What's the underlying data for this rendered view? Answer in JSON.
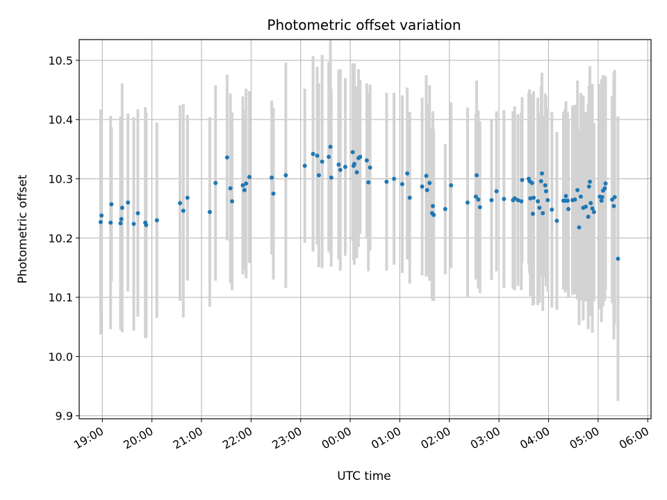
{
  "chart_data": {
    "type": "scatter",
    "title": "Photometric offset variation",
    "xlabel": "UTC time",
    "ylabel": "Photometric offset",
    "x_axis_type": "time",
    "xlim": [
      "18:32",
      "06:04"
    ],
    "ylim": [
      9.895,
      10.535
    ],
    "x_ticks": [
      "19:00",
      "20:00",
      "21:00",
      "22:00",
      "23:00",
      "00:00",
      "01:00",
      "02:00",
      "03:00",
      "04:00",
      "05:00",
      "06:00"
    ],
    "y_ticks": [
      "9.9",
      "10.0",
      "10.1",
      "10.2",
      "10.3",
      "10.4",
      "10.5"
    ],
    "grid": true,
    "x_tick_rotation_deg": 30,
    "colors": {
      "point": "#1f77b4",
      "error_bar": "#d3d3d3",
      "grid": "#b0b0b0"
    },
    "series": [
      {
        "points": [
          {
            "t": "18:58",
            "y": 10.227,
            "err": 0.19
          },
          {
            "t": "18:59",
            "y": 10.238,
            "err": 0.17
          },
          {
            "t": "19:10",
            "y": 10.226,
            "err": 0.18
          },
          {
            "t": "19:11",
            "y": 10.257,
            "err": 0.13
          },
          {
            "t": "19:22",
            "y": 10.225,
            "err": 0.18
          },
          {
            "t": "19:23",
            "y": 10.232,
            "err": 0.17
          },
          {
            "t": "19:24",
            "y": 10.251,
            "err": 0.21
          },
          {
            "t": "19:31",
            "y": 10.26,
            "err": 0.15
          },
          {
            "t": "19:38",
            "y": 10.224,
            "err": 0.18
          },
          {
            "t": "19:43",
            "y": 10.242,
            "err": 0.175
          },
          {
            "t": "19:52",
            "y": 10.226,
            "err": 0.195
          },
          {
            "t": "19:53",
            "y": 10.222,
            "err": 0.19
          },
          {
            "t": "20:06",
            "y": 10.23,
            "err": 0.165
          },
          {
            "t": "20:34",
            "y": 10.259,
            "err": 0.165
          },
          {
            "t": "20:38",
            "y": 10.246,
            "err": 0.18
          },
          {
            "t": "20:43",
            "y": 10.268,
            "err": 0.14
          },
          {
            "t": "21:10",
            "y": 10.244,
            "err": 0.16
          },
          {
            "t": "21:17",
            "y": 10.293,
            "err": 0.165
          },
          {
            "t": "21:31",
            "y": 10.336,
            "err": 0.14
          },
          {
            "t": "21:35",
            "y": 10.284,
            "err": 0.16
          },
          {
            "t": "21:37",
            "y": 10.262,
            "err": 0.15
          },
          {
            "t": "21:50",
            "y": 10.289,
            "err": 0.15
          },
          {
            "t": "21:52",
            "y": 10.281,
            "err": 0.135
          },
          {
            "t": "21:54",
            "y": 10.292,
            "err": 0.16
          },
          {
            "t": "21:58",
            "y": 10.303,
            "err": 0.145
          },
          {
            "t": "22:25",
            "y": 10.302,
            "err": 0.13
          },
          {
            "t": "22:27",
            "y": 10.275,
            "err": 0.145
          },
          {
            "t": "22:42",
            "y": 10.306,
            "err": 0.19
          },
          {
            "t": "23:05",
            "y": 10.322,
            "err": 0.13
          },
          {
            "t": "23:15",
            "y": 10.342,
            "err": 0.165
          },
          {
            "t": "23:20",
            "y": 10.339,
            "err": 0.15
          },
          {
            "t": "23:22",
            "y": 10.306,
            "err": 0.155
          },
          {
            "t": "23:26",
            "y": 10.329,
            "err": 0.18
          },
          {
            "t": "23:34",
            "y": 10.337,
            "err": 0.16
          },
          {
            "t": "23:36",
            "y": 10.354,
            "err": 0.18
          },
          {
            "t": "23:37",
            "y": 10.302,
            "err": 0.15
          },
          {
            "t": "23:46",
            "y": 10.324,
            "err": 0.16
          },
          {
            "t": "23:48",
            "y": 10.315,
            "err": 0.17
          },
          {
            "t": "23:54",
            "y": 10.32,
            "err": 0.15
          },
          {
            "t": "00:03",
            "y": 10.345,
            "err": 0.15
          },
          {
            "t": "00:04",
            "y": 10.322,
            "err": 0.16
          },
          {
            "t": "00:05",
            "y": 10.325,
            "err": 0.17
          },
          {
            "t": "00:08",
            "y": 10.311,
            "err": 0.145
          },
          {
            "t": "00:10",
            "y": 10.335,
            "err": 0.15
          },
          {
            "t": "00:12",
            "y": 10.337,
            "err": 0.13
          },
          {
            "t": "00:20",
            "y": 10.331,
            "err": 0.13
          },
          {
            "t": "00:22",
            "y": 10.294,
            "err": 0.15
          },
          {
            "t": "00:24",
            "y": 10.319,
            "err": 0.14
          },
          {
            "t": "00:44",
            "y": 10.295,
            "err": 0.15
          },
          {
            "t": "00:53",
            "y": 10.3,
            "err": 0.145
          },
          {
            "t": "01:03",
            "y": 10.291,
            "err": 0.15
          },
          {
            "t": "01:09",
            "y": 10.309,
            "err": 0.145
          },
          {
            "t": "01:12",
            "y": 10.268,
            "err": 0.145
          },
          {
            "t": "01:27",
            "y": 10.287,
            "err": 0.15
          },
          {
            "t": "01:32",
            "y": 10.305,
            "err": 0.17
          },
          {
            "t": "01:33",
            "y": 10.281,
            "err": 0.145
          },
          {
            "t": "01:36",
            "y": 10.293,
            "err": 0.165
          },
          {
            "t": "01:39",
            "y": 10.242,
            "err": 0.145
          },
          {
            "t": "01:40",
            "y": 10.254,
            "err": 0.16
          },
          {
            "t": "01:41",
            "y": 10.239,
            "err": 0.145
          },
          {
            "t": "01:55",
            "y": 10.249,
            "err": 0.11
          },
          {
            "t": "02:02",
            "y": 10.289,
            "err": 0.14
          },
          {
            "t": "02:22",
            "y": 10.26,
            "err": 0.16
          },
          {
            "t": "02:32",
            "y": 10.27,
            "err": 0.14
          },
          {
            "t": "02:33",
            "y": 10.306,
            "err": 0.16
          },
          {
            "t": "02:35",
            "y": 10.265,
            "err": 0.15
          },
          {
            "t": "02:37",
            "y": 10.252,
            "err": 0.145
          },
          {
            "t": "02:51",
            "y": 10.264,
            "err": 0.135
          },
          {
            "t": "02:57",
            "y": 10.279,
            "err": 0.135
          },
          {
            "t": "03:06",
            "y": 10.266,
            "err": 0.15
          },
          {
            "t": "03:17",
            "y": 10.264,
            "err": 0.15
          },
          {
            "t": "03:19",
            "y": 10.267,
            "err": 0.155
          },
          {
            "t": "03:23",
            "y": 10.264,
            "err": 0.145
          },
          {
            "t": "03:27",
            "y": 10.262,
            "err": 0.15
          },
          {
            "t": "03:28",
            "y": 10.298,
            "err": 0.14
          },
          {
            "t": "03:36",
            "y": 10.3,
            "err": 0.145
          },
          {
            "t": "03:37",
            "y": 10.296,
            "err": 0.155
          },
          {
            "t": "03:38",
            "y": 10.267,
            "err": 0.165
          },
          {
            "t": "03:40",
            "y": 10.293,
            "err": 0.15
          },
          {
            "t": "03:41",
            "y": 10.241,
            "err": 0.155
          },
          {
            "t": "03:42",
            "y": 10.268,
            "err": 0.18
          },
          {
            "t": "03:47",
            "y": 10.262,
            "err": 0.175
          },
          {
            "t": "03:49",
            "y": 10.251,
            "err": 0.16
          },
          {
            "t": "03:51",
            "y": 10.296,
            "err": 0.16
          },
          {
            "t": "03:52",
            "y": 10.309,
            "err": 0.17
          },
          {
            "t": "03:53",
            "y": 10.242,
            "err": 0.165
          },
          {
            "t": "03:56",
            "y": 10.289,
            "err": 0.155
          },
          {
            "t": "03:57",
            "y": 10.279,
            "err": 0.16
          },
          {
            "t": "03:59",
            "y": 10.264,
            "err": 0.155
          },
          {
            "t": "04:04",
            "y": 10.248,
            "err": 0.165
          },
          {
            "t": "04:10",
            "y": 10.229,
            "err": 0.15
          },
          {
            "t": "04:18",
            "y": 10.263,
            "err": 0.15
          },
          {
            "t": "04:20",
            "y": 10.263,
            "err": 0.155
          },
          {
            "t": "04:21",
            "y": 10.271,
            "err": 0.16
          },
          {
            "t": "04:23",
            "y": 10.263,
            "err": 0.15
          },
          {
            "t": "04:24",
            "y": 10.249,
            "err": 0.15
          },
          {
            "t": "04:29",
            "y": 10.264,
            "err": 0.16
          },
          {
            "t": "04:32",
            "y": 10.265,
            "err": 0.16
          },
          {
            "t": "04:35",
            "y": 10.281,
            "err": 0.185
          },
          {
            "t": "04:37",
            "y": 10.218,
            "err": 0.165
          },
          {
            "t": "04:39",
            "y": 10.27,
            "err": 0.175
          },
          {
            "t": "04:42",
            "y": 10.251,
            "err": 0.19
          },
          {
            "t": "04:45",
            "y": 10.253,
            "err": 0.16
          },
          {
            "t": "04:48",
            "y": 10.236,
            "err": 0.19
          },
          {
            "t": "04:49",
            "y": 10.287,
            "err": 0.17
          },
          {
            "t": "04:50",
            "y": 10.295,
            "err": 0.195
          },
          {
            "t": "04:51",
            "y": 10.259,
            "err": 0.19
          },
          {
            "t": "04:53",
            "y": 10.25,
            "err": 0.21
          },
          {
            "t": "04:55",
            "y": 10.244,
            "err": 0.15
          },
          {
            "t": "05:02",
            "y": 10.27,
            "err": 0.19
          },
          {
            "t": "05:04",
            "y": 10.263,
            "err": 0.205
          },
          {
            "t": "05:05",
            "y": 10.269,
            "err": 0.18
          },
          {
            "t": "05:06",
            "y": 10.28,
            "err": 0.195
          },
          {
            "t": "05:08",
            "y": 10.284,
            "err": 0.19
          },
          {
            "t": "05:09",
            "y": 10.292,
            "err": 0.18
          },
          {
            "t": "05:17",
            "y": 10.265,
            "err": 0.175
          },
          {
            "t": "05:19",
            "y": 10.254,
            "err": 0.225
          },
          {
            "t": "05:20",
            "y": 10.269,
            "err": 0.215
          },
          {
            "t": "05:24",
            "y": 10.165,
            "err": 0.24
          }
        ]
      }
    ]
  }
}
